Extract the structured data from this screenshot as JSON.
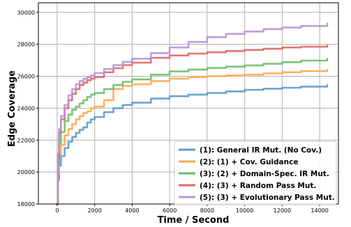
{
  "chart_data": {
    "type": "line",
    "title": "",
    "xlabel": "Time / Second",
    "ylabel": "Edge Coverage",
    "xlim": [
      -1000,
      15000
    ],
    "ylim": [
      18000,
      30600
    ],
    "xticks": [
      0,
      2000,
      4000,
      6000,
      8000,
      10000,
      12000,
      14000
    ],
    "yticks": [
      18000,
      20000,
      22000,
      24000,
      26000,
      28000,
      30000
    ],
    "grid": true,
    "legend_position": "bottom-right",
    "series": [
      {
        "name": "(1): General IR Mut. (No Cov.)",
        "color": "#5b9bc9",
        "x": [
          0,
          40,
          100,
          200,
          400,
          600,
          800,
          1000,
          1200,
          1400,
          1600,
          1800,
          2000,
          2500,
          3000,
          3500,
          4000,
          5000,
          6000,
          7000,
          8000,
          9000,
          10000,
          11000,
          12000,
          13000,
          14400
        ],
        "y": [
          18000,
          19500,
          20400,
          21000,
          21500,
          21900,
          22200,
          22450,
          22650,
          22800,
          23100,
          23300,
          23450,
          23750,
          24000,
          24200,
          24350,
          24600,
          24750,
          24850,
          24950,
          25050,
          25150,
          25220,
          25280,
          25350,
          25450
        ]
      },
      {
        "name": "(2): (1) + Cov. Guidance",
        "color": "#ffa94d",
        "x": [
          0,
          40,
          100,
          200,
          400,
          600,
          800,
          1000,
          1200,
          1400,
          1600,
          1800,
          2000,
          2500,
          3000,
          3500,
          4000,
          5000,
          6000,
          7000,
          8000,
          9000,
          10000,
          11000,
          12000,
          13000,
          14400
        ],
        "y": [
          18000,
          20000,
          21000,
          21700,
          22300,
          22700,
          23000,
          23300,
          23500,
          23700,
          23800,
          24000,
          24100,
          24500,
          25200,
          25400,
          25500,
          25700,
          25850,
          25950,
          26000,
          26050,
          26100,
          26180,
          26250,
          26320,
          26400
        ]
      },
      {
        "name": "(3): (2) + Domain-Spec. IR Mut.",
        "color": "#6abf69",
        "x": [
          0,
          40,
          100,
          200,
          400,
          600,
          800,
          1000,
          1200,
          1400,
          1600,
          1800,
          2000,
          2500,
          3000,
          3500,
          4000,
          5000,
          6000,
          7000,
          8000,
          9000,
          10000,
          11000,
          12000,
          13000,
          14400
        ],
        "y": [
          18000,
          20500,
          21800,
          22500,
          23200,
          23600,
          23900,
          24100,
          24300,
          24500,
          24700,
          24850,
          24950,
          25200,
          25450,
          25650,
          25800,
          26100,
          26300,
          26420,
          26520,
          26600,
          26680,
          26780,
          26880,
          26980,
          27100
        ]
      },
      {
        "name": "(4): (3) + Random Pass Mut.",
        "color": "#e06666",
        "x": [
          0,
          40,
          100,
          200,
          400,
          600,
          800,
          1000,
          1200,
          1400,
          1600,
          1800,
          2000,
          2500,
          3000,
          3500,
          4000,
          5000,
          6000,
          7000,
          8000,
          9000,
          10000,
          11000,
          12000,
          13000,
          14400
        ],
        "y": [
          18000,
          21000,
          22500,
          23300,
          24000,
          24500,
          24900,
          25200,
          25450,
          25600,
          25750,
          25850,
          25950,
          26250,
          26500,
          26700,
          26850,
          27150,
          27300,
          27420,
          27500,
          27580,
          27650,
          27720,
          27800,
          27850,
          27930
        ]
      },
      {
        "name": "(5): (3) + Evolutionary Pass Mut.",
        "color": "#b894d9",
        "x": [
          0,
          40,
          100,
          200,
          400,
          600,
          800,
          1000,
          1200,
          1400,
          1600,
          1800,
          2000,
          2500,
          3000,
          3500,
          4000,
          5000,
          6000,
          7000,
          8000,
          9000,
          10000,
          11000,
          12000,
          13000,
          14400
        ],
        "y": [
          18000,
          21200,
          22700,
          23500,
          24200,
          24800,
          25200,
          25500,
          25700,
          25850,
          25950,
          26050,
          26200,
          26450,
          26700,
          26900,
          27100,
          27450,
          27800,
          28150,
          28450,
          28650,
          28800,
          28950,
          29050,
          29150,
          29300
        ]
      }
    ]
  }
}
